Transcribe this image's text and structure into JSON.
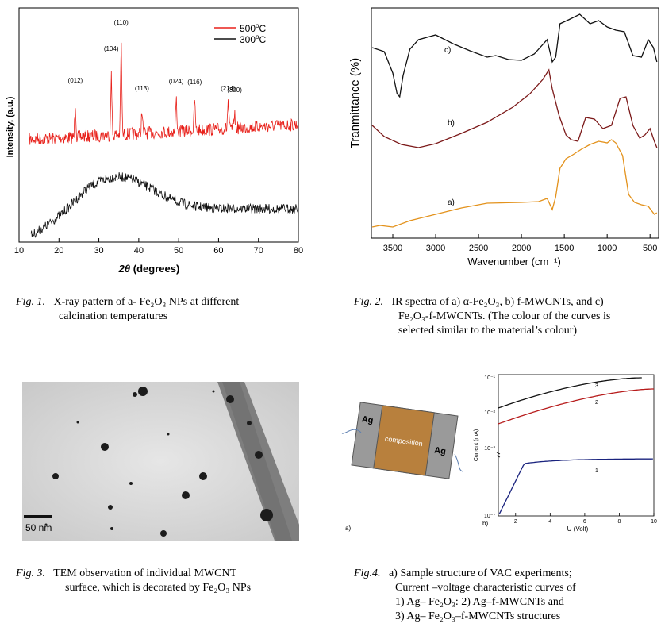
{
  "fig1": {
    "ylabel": "Intensity, (a.u.)",
    "xlabel_theta": "2θ",
    "xlabel_rest": "(degrees)",
    "xticks": [
      "10",
      "20",
      "30",
      "40",
      "50",
      "60",
      "70",
      "80"
    ],
    "legend": [
      {
        "label": "500",
        "sup": "o",
        "unit": "C",
        "color": "#e8201a"
      },
      {
        "label": "300",
        "sup": "o",
        "unit": "C",
        "color": "#111111"
      }
    ],
    "peaks": [
      "(012)",
      "(104)",
      "(110)",
      "(113)",
      "(024)",
      "(116)",
      "(214)",
      "(300)"
    ]
  },
  "fig2": {
    "ylabel": "Tranmittance (%)",
    "xlabel": "Wavenumber (cm⁻¹)",
    "xticks": [
      "3500",
      "3000",
      "2500",
      "2000",
      "1500",
      "1000",
      "500"
    ],
    "curve_labels": [
      "c)",
      "b)",
      "a)"
    ],
    "colors": {
      "a": "#e3921c",
      "b": "#7c1a1a",
      "c": "#111111"
    }
  },
  "fig3": {
    "scale_label": "50 nm"
  },
  "fig4": {
    "left_label_ag1": "Ag",
    "left_label_ag2": "Ag",
    "left_label_comp": "composition",
    "left_tag": "a)",
    "right_tag": "b)",
    "ylabel": "Current (mA)",
    "xlabel": "U (Volt)",
    "xticks": [
      "2",
      "4",
      "6",
      "8",
      "10"
    ],
    "yticks": [
      "10⁻¹",
      "10⁻²",
      "10⁻³",
      "10⁻⁷"
    ],
    "curve_labels": [
      "3",
      "2",
      "1"
    ],
    "colors": {
      "c1": "#1a237e",
      "c2": "#b71c1c",
      "c3": "#111111"
    }
  },
  "captions": {
    "fig1": {
      "label": "Fig. 1.",
      "line1": "X-ray pattern of a- Fe₂O₃ NPs at different",
      "line2": "calcination temperatures"
    },
    "fig2": {
      "label": "Fig. 2.",
      "line1": "IR spectra of a) α-Fe₂O₃, b) f-MWCNTs, and c)",
      "line2": "Fe₂O₃-f-MWCNTs. (The colour of the curves is",
      "line3": "selected similar to the material’s colour)"
    },
    "fig3": {
      "label": "Fig. 3.",
      "line1": "TEM observation of individual MWCNT",
      "line2": "surface, which is decorated by Fe₂O₃ NPs"
    },
    "fig4": {
      "label": "Fig.4.",
      "line1": "a) Sample structure of VAC experiments;",
      "line2": "Current –voltage characteristic curves of",
      "line3": "1) Ag– Fe₂O₃: 2) Ag–f-MWCNTs and",
      "line4": "3)  Ag– Fe₂O₃–f-MWCNTs  structures"
    }
  },
  "chart_data": [
    {
      "type": "line",
      "xlabel": "2θ (degrees)",
      "ylabel": "Intensity, (a.u.)",
      "xlim": [
        10,
        80
      ],
      "series": [
        {
          "name": "500oC",
          "peaks_2theta": [
            24.1,
            33.1,
            35.6,
            40.8,
            49.4,
            54.0,
            62.4,
            64.0
          ],
          "peak_labels": [
            "(012)",
            "(104)",
            "(110)",
            "(113)",
            "(024)",
            "(116)",
            "(214)",
            "(300)"
          ]
        },
        {
          "name": "300oC",
          "note_shape": "broad amorphous hump"
        }
      ]
    },
    {
      "type": "line",
      "xlabel": "Wavenumber (cm-1)",
      "ylabel": "Tranmittance (%)",
      "xlim": [
        3750,
        400
      ],
      "series": [
        {
          "name": "a)"
        },
        {
          "name": "b)"
        },
        {
          "name": "c)"
        }
      ]
    },
    {
      "type": "line",
      "xlabel": "U (Volt)",
      "ylabel": "Current (mA)",
      "xlim": [
        1,
        10
      ],
      "series": [
        {
          "name": "1"
        },
        {
          "name": "2"
        },
        {
          "name": "3"
        }
      ]
    }
  ]
}
